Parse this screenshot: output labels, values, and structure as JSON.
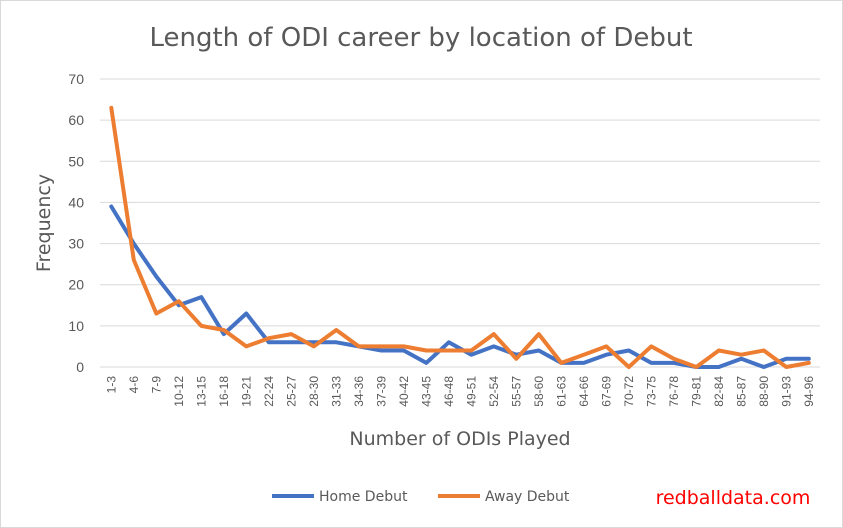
{
  "chart_data": {
    "type": "line",
    "title": "Length of ODI career by location of Debut",
    "xlabel": "Number of ODIs Played",
    "ylabel": "Frequency",
    "ylim": [
      0,
      70
    ],
    "yticks": [
      0,
      10,
      20,
      30,
      40,
      50,
      60,
      70
    ],
    "grid": true,
    "legend": "bottom",
    "categories": [
      "1-3",
      "4-6",
      "7-9",
      "10-12",
      "13-15",
      "16-18",
      "19-21",
      "22-24",
      "25-27",
      "28-30",
      "31-33",
      "34-36",
      "37-39",
      "40-42",
      "43-45",
      "46-48",
      "49-51",
      "52-54",
      "55-57",
      "58-60",
      "61-63",
      "64-66",
      "67-69",
      "70-72",
      "73-75",
      "76-78",
      "79-81",
      "82-84",
      "85-87",
      "88-90",
      "91-93",
      "94-96"
    ],
    "series": [
      {
        "name": "Home Debut",
        "color": "#4472c4",
        "values": [
          39,
          30,
          22,
          15,
          17,
          8,
          13,
          6,
          6,
          6,
          6,
          5,
          4,
          4,
          1,
          6,
          3,
          5,
          3,
          4,
          1,
          1,
          3,
          4,
          1,
          1,
          0,
          0,
          2,
          0,
          2,
          2
        ]
      },
      {
        "name": "Away Debut",
        "color": "#ed7d31",
        "values": [
          63,
          26,
          13,
          16,
          10,
          9,
          5,
          7,
          8,
          5,
          9,
          5,
          5,
          5,
          4,
          4,
          4,
          8,
          2,
          8,
          1,
          3,
          5,
          0,
          5,
          2,
          0,
          4,
          3,
          4,
          0,
          1
        ]
      }
    ]
  },
  "watermark": "redballdata.com"
}
